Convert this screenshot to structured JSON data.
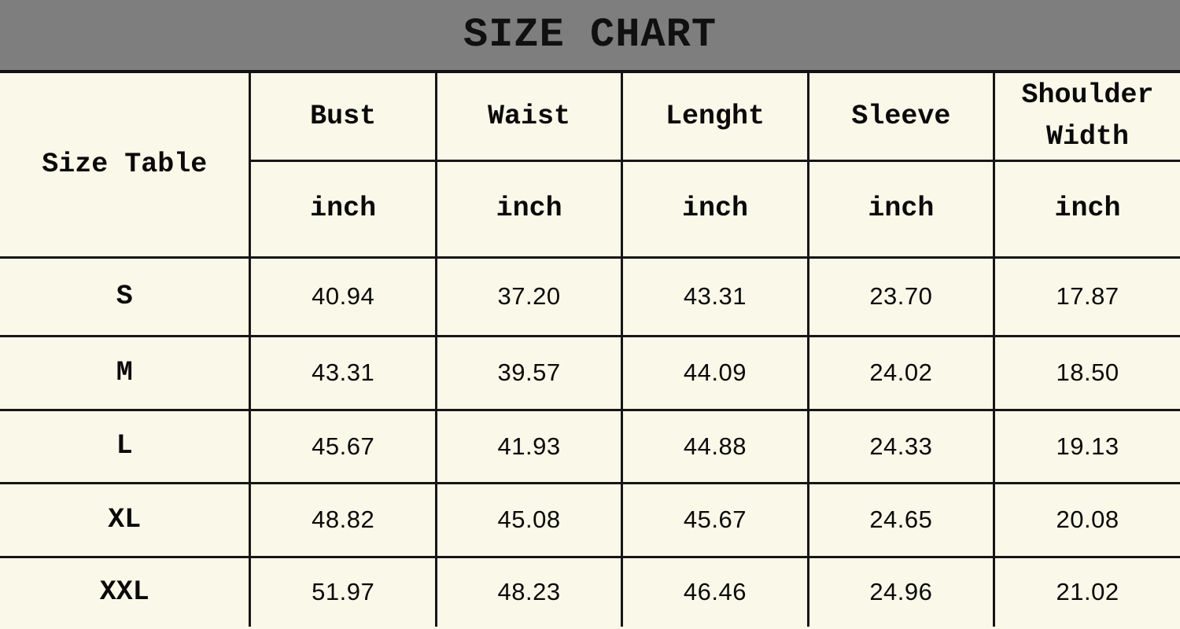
{
  "banner": {
    "title": "SIZE CHART"
  },
  "table": {
    "corner_label": "Size Table",
    "columns": [
      {
        "name": "Bust",
        "unit": "inch"
      },
      {
        "name": "Waist",
        "unit": "inch"
      },
      {
        "name": "Lenght",
        "unit": "inch"
      },
      {
        "name": "Sleeve",
        "unit": "inch"
      },
      {
        "name": "Shoulder Width",
        "unit": "inch"
      }
    ],
    "rows": [
      {
        "size": "S",
        "values": [
          "40.94",
          "37.20",
          "43.31",
          "23.70",
          "17.87"
        ]
      },
      {
        "size": "M",
        "values": [
          "43.31",
          "39.57",
          "44.09",
          "24.02",
          "18.50"
        ]
      },
      {
        "size": "L",
        "values": [
          "45.67",
          "41.93",
          "44.88",
          "24.33",
          "19.13"
        ]
      },
      {
        "size": "XL",
        "values": [
          "48.82",
          "45.08",
          "45.67",
          "24.65",
          "20.08"
        ]
      },
      {
        "size": "XXL",
        "values": [
          "51.97",
          "48.23",
          "46.46",
          "24.96",
          "21.02"
        ]
      }
    ]
  },
  "chart_data": {
    "type": "table",
    "title": "SIZE CHART",
    "corner_label": "Size Table",
    "unit": "inch",
    "columns": [
      "Bust",
      "Waist",
      "Lenght",
      "Sleeve",
      "Shoulder Width"
    ],
    "rows": [
      {
        "size": "S",
        "bust": 40.94,
        "waist": 37.2,
        "lenght": 43.31,
        "sleeve": 23.7,
        "shoulder_width": 17.87
      },
      {
        "size": "M",
        "bust": 43.31,
        "waist": 39.57,
        "lenght": 44.09,
        "sleeve": 24.02,
        "shoulder_width": 18.5
      },
      {
        "size": "L",
        "bust": 45.67,
        "waist": 41.93,
        "lenght": 44.88,
        "sleeve": 24.33,
        "shoulder_width": 19.13
      },
      {
        "size": "XL",
        "bust": 48.82,
        "waist": 45.08,
        "lenght": 45.67,
        "sleeve": 24.65,
        "shoulder_width": 20.08
      },
      {
        "size": "XXL",
        "bust": 51.97,
        "waist": 48.23,
        "lenght": 46.46,
        "sleeve": 24.96,
        "shoulder_width": 21.02
      }
    ]
  },
  "colors": {
    "background": "#FAF8E9",
    "banner_bg": "#7E7E7E",
    "border": "#161616",
    "text": "#0A0A0A"
  }
}
